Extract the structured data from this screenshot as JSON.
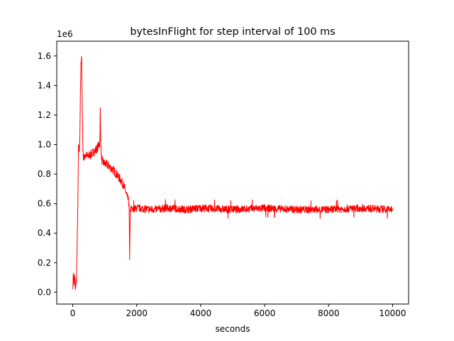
{
  "chart_data": {
    "type": "line",
    "title": "bytesInFlight for step interval of 100 ms",
    "xlabel": "seconds",
    "ylabel": "",
    "y_offset_label": "1e6",
    "xlim": [
      -500,
      10500
    ],
    "ylim": [
      -0.08,
      1.7
    ],
    "x_ticks": [
      0,
      2000,
      4000,
      6000,
      8000,
      10000
    ],
    "x_tick_labels": [
      "0",
      "2000",
      "4000",
      "6000",
      "8000",
      "10000"
    ],
    "y_ticks": [
      0.0,
      0.2,
      0.4,
      0.6,
      0.8,
      1.0,
      1.2,
      1.4,
      1.6
    ],
    "y_tick_labels": [
      "0.0",
      "0.2",
      "0.4",
      "0.6",
      "0.8",
      "1.0",
      "1.2",
      "1.4",
      "1.6"
    ],
    "grid": false,
    "legend": "none",
    "line_color": "#ff0000",
    "series": [
      {
        "x": [
          0,
          20,
          40,
          60,
          80,
          100,
          120,
          140,
          160,
          180,
          200,
          220,
          240,
          260,
          280,
          300,
          320,
          340,
          380,
          450,
          550,
          650,
          750,
          820,
          850,
          860,
          880,
          900,
          950,
          1000,
          1100,
          1200,
          1300,
          1400,
          1500,
          1600,
          1700,
          1760,
          1780,
          1790,
          1800,
          1850,
          1900,
          2000,
          2500,
          3000,
          3500,
          4000,
          5000,
          6000,
          7000,
          8000,
          9000,
          10000
        ],
        "y": [
          0.02,
          0.13,
          0.05,
          0.12,
          0.02,
          0.06,
          0.1,
          0.35,
          0.6,
          1.0,
          0.95,
          1.02,
          1.38,
          1.55,
          1.58,
          1.2,
          0.95,
          0.9,
          0.93,
          0.92,
          0.93,
          0.95,
          0.97,
          1.0,
          1.02,
          1.25,
          0.98,
          0.9,
          0.88,
          0.87,
          0.86,
          0.84,
          0.82,
          0.79,
          0.76,
          0.72,
          0.65,
          0.6,
          0.22,
          0.4,
          0.56,
          0.57,
          0.56,
          0.57,
          0.56,
          0.57,
          0.56,
          0.57,
          0.56,
          0.57,
          0.56,
          0.56,
          0.57,
          0.56
        ]
      }
    ]
  }
}
